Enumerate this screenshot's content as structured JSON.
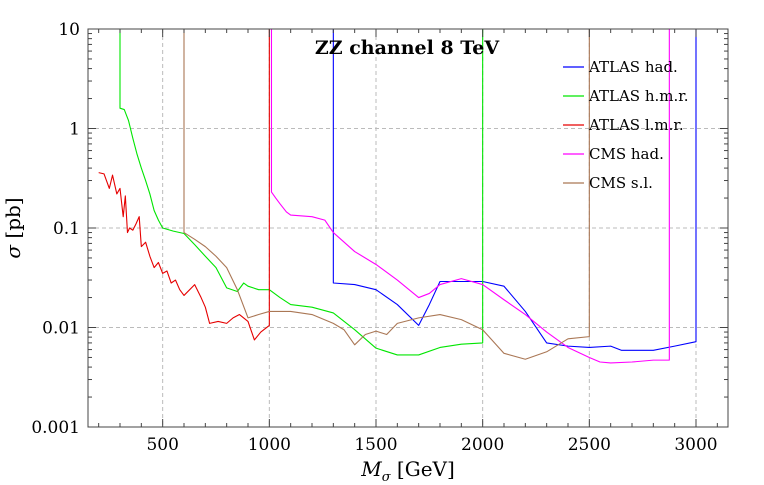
{
  "chart_data": {
    "type": "line",
    "title": "ZZ channel 8 TeV",
    "xlabel": {
      "symbol": "M",
      "subscript": "σ",
      "unit": " [GeV]"
    },
    "ylabel": {
      "symbol": "σ",
      "unit": " [pb]"
    },
    "x_scale": "linear",
    "y_scale": "log",
    "xlim": [
      150,
      3150
    ],
    "ylim": [
      0.001,
      10
    ],
    "x_ticks": [
      500,
      1000,
      1500,
      2000,
      2500,
      3000
    ],
    "x_tick_labels": [
      "500",
      "1000",
      "1500",
      "2000",
      "2500",
      "3000"
    ],
    "y_ticks": [
      0.001,
      0.01,
      0.1,
      1,
      10
    ],
    "y_tick_labels": [
      "0.001",
      "0.01",
      "0.1",
      "1",
      "10"
    ],
    "grid": true,
    "legend_position": "top-right",
    "series": [
      {
        "name": "ATLAS had.",
        "color": "#0000ff",
        "points": [
          [
            1300,
            10
          ],
          [
            1300,
            0.028
          ],
          [
            1400,
            0.027
          ],
          [
            1500,
            0.024
          ],
          [
            1600,
            0.017
          ],
          [
            1700,
            0.0105
          ],
          [
            1750,
            0.017
          ],
          [
            1800,
            0.029
          ],
          [
            1900,
            0.029
          ],
          [
            2000,
            0.029
          ],
          [
            2100,
            0.026
          ],
          [
            2200,
            0.0145
          ],
          [
            2300,
            0.007
          ],
          [
            2400,
            0.0065
          ],
          [
            2500,
            0.0063
          ],
          [
            2600,
            0.0065
          ],
          [
            2650,
            0.0059
          ],
          [
            2800,
            0.0059
          ],
          [
            2900,
            0.0065
          ],
          [
            3000,
            0.0072
          ],
          [
            3000,
            10
          ]
        ]
      },
      {
        "name": "ATLAS h.m.r.",
        "color": "#00e600",
        "points": [
          [
            300,
            10
          ],
          [
            300,
            1.6
          ],
          [
            320,
            1.55
          ],
          [
            340,
            1.2
          ],
          [
            360,
            0.8
          ],
          [
            380,
            0.55
          ],
          [
            400,
            0.4
          ],
          [
            420,
            0.3
          ],
          [
            440,
            0.22
          ],
          [
            460,
            0.15
          ],
          [
            480,
            0.12
          ],
          [
            500,
            0.1
          ],
          [
            550,
            0.093
          ],
          [
            600,
            0.088
          ],
          [
            650,
            0.068
          ],
          [
            700,
            0.052
          ],
          [
            750,
            0.04
          ],
          [
            800,
            0.025
          ],
          [
            850,
            0.023
          ],
          [
            880,
            0.028
          ],
          [
            900,
            0.026
          ],
          [
            950,
            0.024
          ],
          [
            1000,
            0.024
          ],
          [
            1050,
            0.02
          ],
          [
            1100,
            0.017
          ],
          [
            1200,
            0.016
          ],
          [
            1300,
            0.014
          ],
          [
            1400,
            0.0095
          ],
          [
            1500,
            0.0062
          ],
          [
            1600,
            0.0053
          ],
          [
            1700,
            0.0053
          ],
          [
            1800,
            0.0063
          ],
          [
            1900,
            0.0068
          ],
          [
            2000,
            0.007
          ],
          [
            2000,
            10
          ]
        ]
      },
      {
        "name": "ATLAS l.m.r.",
        "color": "#e60000",
        "points": [
          [
            200,
            0.36
          ],
          [
            225,
            0.35
          ],
          [
            250,
            0.25
          ],
          [
            265,
            0.34
          ],
          [
            285,
            0.22
          ],
          [
            300,
            0.25
          ],
          [
            315,
            0.13
          ],
          [
            325,
            0.21
          ],
          [
            335,
            0.09
          ],
          [
            345,
            0.1
          ],
          [
            360,
            0.095
          ],
          [
            375,
            0.11
          ],
          [
            390,
            0.13
          ],
          [
            400,
            0.065
          ],
          [
            420,
            0.072
          ],
          [
            440,
            0.052
          ],
          [
            460,
            0.04
          ],
          [
            480,
            0.045
          ],
          [
            500,
            0.035
          ],
          [
            520,
            0.037
          ],
          [
            540,
            0.028
          ],
          [
            560,
            0.03
          ],
          [
            580,
            0.024
          ],
          [
            600,
            0.021
          ],
          [
            650,
            0.027
          ],
          [
            680,
            0.02
          ],
          [
            700,
            0.016
          ],
          [
            720,
            0.011
          ],
          [
            760,
            0.0115
          ],
          [
            800,
            0.011
          ],
          [
            830,
            0.0125
          ],
          [
            860,
            0.0135
          ],
          [
            900,
            0.0115
          ],
          [
            930,
            0.0075
          ],
          [
            960,
            0.009
          ],
          [
            1000,
            0.0105
          ],
          [
            1000,
            10
          ]
        ]
      },
      {
        "name": "CMS had.",
        "color": "#ff00ff",
        "points": [
          [
            1010,
            10
          ],
          [
            1010,
            0.23
          ],
          [
            1030,
            0.2
          ],
          [
            1050,
            0.175
          ],
          [
            1080,
            0.145
          ],
          [
            1100,
            0.135
          ],
          [
            1200,
            0.13
          ],
          [
            1260,
            0.12
          ],
          [
            1300,
            0.09
          ],
          [
            1400,
            0.058
          ],
          [
            1500,
            0.043
          ],
          [
            1600,
            0.03
          ],
          [
            1700,
            0.02
          ],
          [
            1750,
            0.022
          ],
          [
            1800,
            0.027
          ],
          [
            1900,
            0.031
          ],
          [
            2000,
            0.027
          ],
          [
            2100,
            0.019
          ],
          [
            2200,
            0.0135
          ],
          [
            2300,
            0.009
          ],
          [
            2400,
            0.0063
          ],
          [
            2500,
            0.005
          ],
          [
            2550,
            0.0045
          ],
          [
            2600,
            0.0044
          ],
          [
            2700,
            0.0045
          ],
          [
            2800,
            0.0047
          ],
          [
            2875,
            0.0047
          ],
          [
            2875,
            10
          ]
        ]
      },
      {
        "name": "CMS s.l.",
        "color": "#aa7755",
        "points": [
          [
            600,
            10
          ],
          [
            600,
            0.09
          ],
          [
            650,
            0.077
          ],
          [
            700,
            0.065
          ],
          [
            750,
            0.052
          ],
          [
            800,
            0.04
          ],
          [
            850,
            0.024
          ],
          [
            900,
            0.0125
          ],
          [
            950,
            0.0135
          ],
          [
            1000,
            0.0145
          ],
          [
            1100,
            0.0145
          ],
          [
            1200,
            0.0135
          ],
          [
            1300,
            0.011
          ],
          [
            1350,
            0.0095
          ],
          [
            1400,
            0.0067
          ],
          [
            1450,
            0.0085
          ],
          [
            1500,
            0.0092
          ],
          [
            1550,
            0.0085
          ],
          [
            1600,
            0.011
          ],
          [
            1700,
            0.0125
          ],
          [
            1800,
            0.0135
          ],
          [
            1900,
            0.012
          ],
          [
            2000,
            0.0095
          ],
          [
            2100,
            0.0055
          ],
          [
            2200,
            0.0048
          ],
          [
            2300,
            0.0057
          ],
          [
            2400,
            0.0077
          ],
          [
            2500,
            0.0081
          ],
          [
            2500,
            10
          ]
        ]
      }
    ]
  }
}
